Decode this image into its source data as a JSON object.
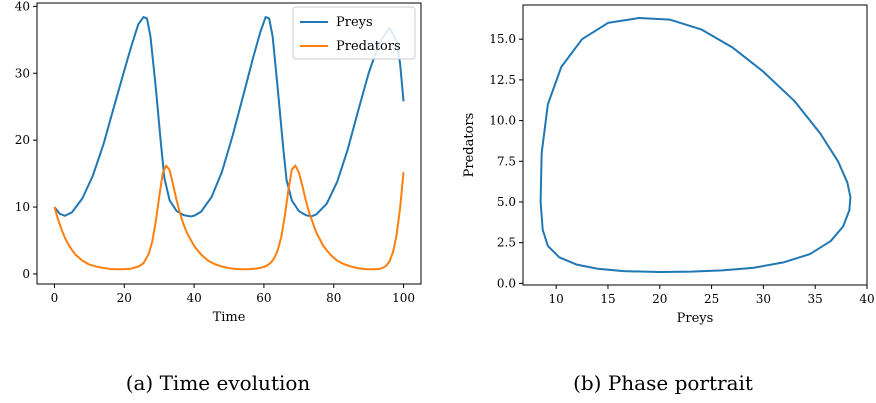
{
  "chart_data": [
    {
      "type": "line",
      "caption": "(a) Time evolution",
      "xlabel": "Time",
      "ylabel": "",
      "xlim": [
        -5,
        105
      ],
      "ylim": [
        -1.5,
        40.5
      ],
      "xticks": [
        0,
        20,
        40,
        60,
        80,
        100
      ],
      "yticks": [
        0,
        10,
        20,
        30,
        40
      ],
      "grid": false,
      "legend": "top-right",
      "series": [
        {
          "name": "Preys",
          "color": "#1f77b4",
          "x": [
            0,
            1.5,
            3,
            5,
            8,
            11,
            14,
            17,
            20,
            22,
            24,
            25.5,
            26.5,
            27.5,
            29,
            30.5,
            31.5,
            33,
            35,
            37,
            39,
            40,
            42,
            45,
            48,
            51,
            54,
            57,
            59,
            60.5,
            61.5,
            62.5,
            64,
            65.5,
            66.5,
            68,
            70,
            72,
            73.5,
            75,
            78,
            81,
            84,
            87,
            90,
            93,
            96,
            98,
            99,
            100
          ],
          "y": [
            10.0,
            9.0,
            8.7,
            9.2,
            11.3,
            14.7,
            19.3,
            24.9,
            30.4,
            34.0,
            37.3,
            38.4,
            38.2,
            35.5,
            28.0,
            19.5,
            14.3,
            11.0,
            9.4,
            8.8,
            8.6,
            8.7,
            9.3,
            11.5,
            15.3,
            20.6,
            26.5,
            32.5,
            36.2,
            38.4,
            38.2,
            35.5,
            27.5,
            19.0,
            14.0,
            11.0,
            9.4,
            8.8,
            8.6,
            8.9,
            10.5,
            13.8,
            18.6,
            24.4,
            30.0,
            34.5,
            36.8,
            34.8,
            31.5,
            25.8
          ]
        },
        {
          "name": "Predators",
          "color": "#ff7f0e",
          "x": [
            0,
            1,
            2,
            3,
            4,
            5,
            6,
            8,
            10,
            12,
            14,
            16,
            18,
            20,
            22,
            24,
            25.5,
            27,
            28,
            29,
            30,
            31,
            32,
            33,
            34,
            35,
            36,
            37,
            38,
            40,
            42,
            44,
            46,
            48,
            50,
            52,
            54,
            56,
            58,
            60,
            61,
            62,
            63,
            64,
            65,
            66,
            67,
            68,
            69,
            70,
            71,
            72,
            73,
            75,
            77,
            79,
            81,
            83,
            85,
            87,
            89,
            91,
            93,
            94,
            95,
            96,
            97,
            98,
            99,
            100
          ],
          "y": [
            10.0,
            8.2,
            6.7,
            5.4,
            4.4,
            3.6,
            2.9,
            2.0,
            1.4,
            1.1,
            0.9,
            0.75,
            0.7,
            0.72,
            0.8,
            1.1,
            1.6,
            3.0,
            4.8,
            7.8,
            11.5,
            15.0,
            16.2,
            15.5,
            13.3,
            11.0,
            9.0,
            7.4,
            6.1,
            4.2,
            2.9,
            2.0,
            1.45,
            1.1,
            0.88,
            0.75,
            0.7,
            0.72,
            0.82,
            1.05,
            1.3,
            1.7,
            2.4,
            3.6,
            5.6,
            8.7,
            12.5,
            15.6,
            16.2,
            15.2,
            13.2,
            11.0,
            9.1,
            6.2,
            4.2,
            2.9,
            2.0,
            1.45,
            1.1,
            0.85,
            0.72,
            0.7,
            0.75,
            0.9,
            1.2,
            1.9,
            3.3,
            5.8,
            9.8,
            15.2
          ]
        }
      ]
    },
    {
      "type": "line",
      "caption": "(b) Phase portrait",
      "xlabel": "Preys",
      "ylabel": "Predators",
      "xlim": [
        6.8,
        40
      ],
      "ylim": [
        -0.1,
        17.1
      ],
      "xticks": [
        10,
        15,
        20,
        25,
        30,
        35,
        40
      ],
      "yticks": [
        0.0,
        2.5,
        5.0,
        7.5,
        10.0,
        12.5,
        15.0
      ],
      "ytick_labels": [
        "0.0",
        "2.5",
        "5.0",
        "7.5",
        "10.0",
        "12.5",
        "15.0"
      ],
      "grid": false,
      "series": [
        {
          "color": "#1f77b4",
          "x": [
            8.6,
            8.5,
            8.7,
            9.2,
            10.3,
            12.0,
            14.0,
            16.5,
            20.0,
            23.0,
            26.0,
            29.0,
            32.0,
            34.5,
            36.5,
            37.7,
            38.3,
            38.4,
            38.1,
            37.2,
            35.5,
            33.0,
            30.0,
            27.0,
            24.0,
            21.0,
            18.0,
            15.0,
            12.5,
            10.5,
            9.2,
            8.6
          ],
          "y": [
            8.0,
            5.0,
            3.3,
            2.3,
            1.6,
            1.15,
            0.9,
            0.75,
            0.7,
            0.72,
            0.8,
            0.95,
            1.3,
            1.8,
            2.6,
            3.5,
            4.5,
            5.3,
            6.2,
            7.5,
            9.2,
            11.2,
            13.0,
            14.5,
            15.6,
            16.2,
            16.3,
            16.0,
            15.0,
            13.3,
            11.0,
            8.0
          ]
        }
      ]
    }
  ]
}
